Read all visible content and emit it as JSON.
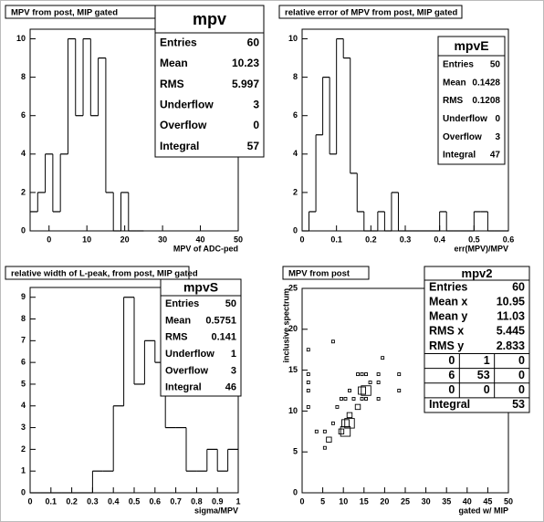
{
  "chart_data": [
    {
      "type": "histogram",
      "title": "MPV from post, MIP gated",
      "xlabel": "MPV of ADC-ped",
      "bins": [
        -5,
        -3,
        -1,
        1,
        3,
        5,
        7,
        9,
        11,
        13,
        15,
        17,
        19,
        21,
        23,
        25
      ],
      "counts": [
        1,
        2,
        4,
        1,
        4,
        10,
        6,
        10,
        6,
        9,
        2,
        0,
        2,
        0,
        0
      ],
      "xlim": [
        -5,
        50
      ],
      "ylim": [
        0,
        10.5
      ],
      "xticks": [
        0,
        10,
        20,
        30,
        40,
        50
      ],
      "yticks": [
        0,
        2,
        4,
        6,
        8,
        10
      ],
      "stats": {
        "title": "mpv",
        "rows": [
          {
            "label": "Entries",
            "value": 60
          },
          {
            "label": "Mean",
            "value": 10.23
          },
          {
            "label": "RMS",
            "value": 5.997
          },
          {
            "label": "Underflow",
            "value": 3
          },
          {
            "label": "Overflow",
            "value": 0
          },
          {
            "label": "Integral",
            "value": 57
          }
        ]
      }
    },
    {
      "type": "histogram",
      "title": "relative error of MPV from post, MIP gated",
      "xlabel": "err(MPV)/MPV",
      "bins": [
        0,
        0.02,
        0.04,
        0.06,
        0.08,
        0.1,
        0.12,
        0.14,
        0.16,
        0.18,
        0.2,
        0.22,
        0.24,
        0.26,
        0.28,
        0.3,
        0.32,
        0.34,
        0.36,
        0.38,
        0.4,
        0.42,
        0.44,
        0.46,
        0.48,
        0.5,
        0.52,
        0.54,
        0.56,
        0.58,
        0.6
      ],
      "counts": [
        0,
        1,
        5,
        8,
        4,
        10,
        9,
        3,
        1,
        0,
        0,
        1,
        0,
        2,
        0,
        0,
        0,
        0,
        0,
        0,
        1,
        0,
        0,
        0,
        0,
        1,
        1,
        0,
        0,
        0
      ],
      "xlim": [
        0,
        0.6
      ],
      "ylim": [
        0,
        10.5
      ],
      "xticks": [
        0,
        0.1,
        0.2,
        0.3,
        0.4,
        0.5,
        0.6
      ],
      "yticks": [
        0,
        2,
        4,
        6,
        8,
        10
      ],
      "stats": {
        "title": "mpvE",
        "rows": [
          {
            "label": "Entries",
            "value": 50
          },
          {
            "label": "Mean",
            "value": 0.1428
          },
          {
            "label": "RMS",
            "value": 0.1208
          },
          {
            "label": "Underflow",
            "value": 0
          },
          {
            "label": "Overflow",
            "value": 3
          },
          {
            "label": "Integral",
            "value": 47
          }
        ]
      }
    },
    {
      "type": "histogram",
      "title": "relative width of L-peak, from post, MIP gated",
      "xlabel": "sigma/MPV",
      "bins": [
        0,
        0.05,
        0.1,
        0.15,
        0.2,
        0.25,
        0.3,
        0.35,
        0.4,
        0.45,
        0.5,
        0.55,
        0.6,
        0.65,
        0.7,
        0.75,
        0.8,
        0.85,
        0.9,
        0.95,
        1
      ],
      "counts": [
        0,
        0,
        0,
        0,
        0,
        0,
        1,
        1,
        4,
        9,
        5,
        7,
        6,
        3,
        3,
        1,
        1,
        2,
        1,
        2
      ],
      "xlim": [
        0,
        1
      ],
      "ylim": [
        0,
        9.45
      ],
      "xticks": [
        0,
        0.1,
        0.2,
        0.3,
        0.4,
        0.5,
        0.6,
        0.7,
        0.8,
        0.9,
        1
      ],
      "yticks": [
        0,
        1,
        2,
        3,
        4,
        5,
        6,
        7,
        8,
        9
      ],
      "stats": {
        "title": "mpvS",
        "rows": [
          {
            "label": "Entries",
            "value": 50
          },
          {
            "label": "Mean",
            "value": 0.5751
          },
          {
            "label": "RMS",
            "value": 0.141
          },
          {
            "label": "Underflow",
            "value": 1
          },
          {
            "label": "Overflow",
            "value": 3
          },
          {
            "label": "Integral",
            "value": 46
          }
        ]
      }
    },
    {
      "type": "box2d",
      "title": "MPV from post",
      "xlabel": "gated w/ MIP",
      "ylabel": "inclusive spectrum",
      "x": [
        1.5,
        1.5,
        1.5,
        1.5,
        1.5,
        7.5,
        3.5,
        5.5,
        6.5,
        7.5,
        8.5,
        9.5,
        9.5,
        10.5,
        10.5,
        11.5,
        11.5,
        10.5,
        11.5,
        12.5,
        13.5,
        13.5,
        14.5,
        15.5,
        14.5,
        15.5,
        14.5,
        15.5,
        16.5,
        18.5,
        18.5,
        19.5,
        18.5,
        23.5,
        23.5,
        5.5
      ],
      "y": [
        17.5,
        14.5,
        13.5,
        12.5,
        10.5,
        18.5,
        7.5,
        7.5,
        6.5,
        8.5,
        10.5,
        11.5,
        7.5,
        8.5,
        7.5,
        8.5,
        9.5,
        11.5,
        12.5,
        11.5,
        10.5,
        14.5,
        12.5,
        12.5,
        14.5,
        14.5,
        11.5,
        11.5,
        13.5,
        13.5,
        11.5,
        16.5,
        14.5,
        14.5,
        12.5,
        5.5
      ],
      "values": [
        1,
        1,
        1,
        1,
        1,
        1,
        1,
        1,
        2,
        1,
        1,
        1,
        2,
        3,
        4,
        4,
        2,
        1,
        1,
        1,
        2,
        1,
        3,
        4,
        1,
        1,
        1,
        1,
        1,
        1,
        1,
        1,
        1,
        1,
        1,
        1
      ],
      "xlim": [
        0,
        50
      ],
      "ylim": [
        0,
        25
      ],
      "xticks": [
        0,
        5,
        10,
        15,
        20,
        25,
        30,
        35,
        40,
        45,
        50
      ],
      "yticks": [
        0,
        5,
        10,
        15,
        20,
        25
      ],
      "stats": {
        "title": "mpv2",
        "rows": [
          {
            "label": "Entries",
            "value": 60
          },
          {
            "label": "Mean x",
            "value": 10.95
          },
          {
            "label": "Mean y",
            "value": 11.03
          },
          {
            "label": "RMS x",
            "value": 5.445
          },
          {
            "label": "RMS y",
            "value": 2.833
          }
        ],
        "grid": [
          [
            0,
            1,
            0
          ],
          [
            6,
            53,
            0
          ],
          [
            0,
            0,
            0
          ]
        ],
        "footer_rows": [
          {
            "label": "Integral",
            "value": 53
          }
        ]
      }
    }
  ]
}
